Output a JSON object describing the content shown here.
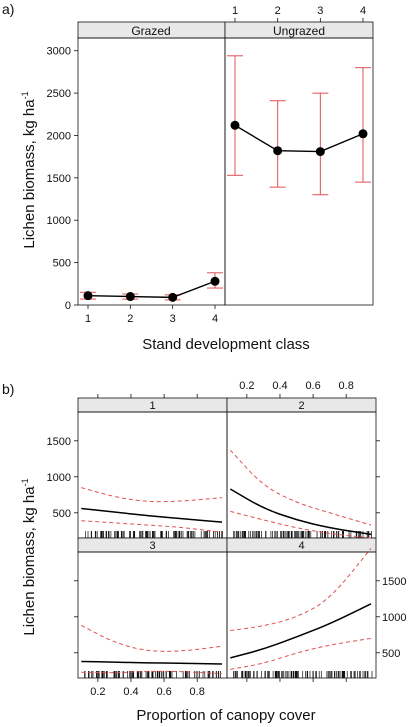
{
  "panel_labels": [
    "a)",
    "b)"
  ],
  "chart_data": [
    {
      "type": "line",
      "panels": [
        "Grazed",
        "Ungrazed"
      ],
      "categories": [
        "1",
        "2",
        "3",
        "4"
      ],
      "xlabel": "Stand development class",
      "ylabel_main": "Lichen biomass, kg ha",
      "ylabel_sup": "-1",
      "ylim": [
        0,
        3150
      ],
      "yticks": [
        0,
        500,
        1000,
        1500,
        2000,
        2500,
        3000
      ],
      "series": [
        {
          "panel": "Grazed",
          "values": [
            110,
            100,
            90,
            280
          ],
          "lower": [
            70,
            70,
            60,
            200
          ],
          "upper": [
            150,
            130,
            120,
            380
          ]
        },
        {
          "panel": "Ungrazed",
          "values": [
            2120,
            1820,
            1810,
            2020
          ],
          "lower": [
            1530,
            1390,
            1300,
            1450
          ],
          "upper": [
            2940,
            2410,
            2500,
            2800
          ]
        }
      ],
      "colors": {
        "line": "#000000",
        "ci": "#e05050"
      }
    },
    {
      "type": "line",
      "panels": [
        "1",
        "2",
        "3",
        "4"
      ],
      "xlabel": "Proportion of canopy cover",
      "ylabel_main": "Lichen biomass, kg ha",
      "ylabel_sup": "-1",
      "xlim": [
        0.08,
        0.98
      ],
      "xticks": [
        "0.2",
        "0.4",
        "0.6",
        "0.8"
      ],
      "ylim": [
        150,
        1900
      ],
      "yticks_left": [
        "500",
        "1000",
        "1500"
      ],
      "yticks_right": [
        "500",
        "1000",
        "1500"
      ],
      "x": [
        0.1,
        0.3,
        0.5,
        0.7,
        0.95
      ],
      "curves": [
        {
          "panel": "1",
          "fit": [
            560,
            510,
            460,
            420,
            370
          ],
          "lower": [
            390,
            360,
            330,
            300,
            230
          ],
          "upper": [
            850,
            720,
            650,
            660,
            710
          ]
        },
        {
          "panel": "2",
          "fit": [
            830,
            560,
            400,
            290,
            200
          ],
          "lower": [
            520,
            400,
            290,
            210,
            150
          ],
          "upper": [
            1370,
            870,
            640,
            500,
            330
          ]
        },
        {
          "panel": "3",
          "fit": [
            380,
            370,
            360,
            355,
            345
          ],
          "lower": [
            230,
            220,
            245,
            240,
            210
          ],
          "upper": [
            880,
            640,
            520,
            520,
            590
          ]
        },
        {
          "panel": "4",
          "fit": [
            430,
            550,
            720,
            900,
            1180
          ],
          "lower": [
            270,
            350,
            500,
            610,
            700
          ],
          "upper": [
            810,
            870,
            990,
            1240,
            1950
          ]
        }
      ],
      "colors": {
        "line": "#000000",
        "ci": "#e05050"
      }
    }
  ]
}
